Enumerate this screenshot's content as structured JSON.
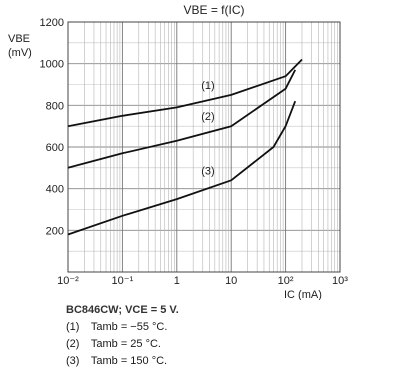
{
  "chart_data": {
    "type": "line",
    "title": "VBE = f(IC)",
    "ylabel": "VBE",
    "yunit": "(mV)",
    "xlabel": "IC (mA)",
    "xscale": "log",
    "xlim": [
      0.01,
      1000
    ],
    "ylim": [
      0,
      1200
    ],
    "y_ticks": [
      200,
      400,
      600,
      800,
      1000,
      1200
    ],
    "x_tick_labels": [
      "10⁻²",
      "10⁻¹",
      "1",
      "10",
      "10²",
      "10³"
    ],
    "grid": true,
    "series": [
      {
        "name": "(1)",
        "x": [
          0.01,
          0.1,
          1,
          10,
          100,
          200
        ],
        "y": [
          700,
          750,
          790,
          850,
          940,
          1020
        ]
      },
      {
        "name": "(2)",
        "x": [
          0.01,
          0.1,
          1,
          10,
          100,
          150
        ],
        "y": [
          500,
          570,
          630,
          700,
          880,
          970
        ]
      },
      {
        "name": "(3)",
        "x": [
          0.01,
          0.1,
          1,
          10,
          60,
          100,
          150
        ],
        "y": [
          180,
          270,
          350,
          440,
          600,
          700,
          820
        ]
      }
    ]
  },
  "legend": {
    "condition": "BC846CW; VCE = 5 V.",
    "items": [
      {
        "num": "(1)",
        "text": "Tamb = −55 °C."
      },
      {
        "num": "(2)",
        "text": "Tamb = 25 °C."
      },
      {
        "num": "(3)",
        "text": "Tamb = 150 °C."
      }
    ]
  }
}
